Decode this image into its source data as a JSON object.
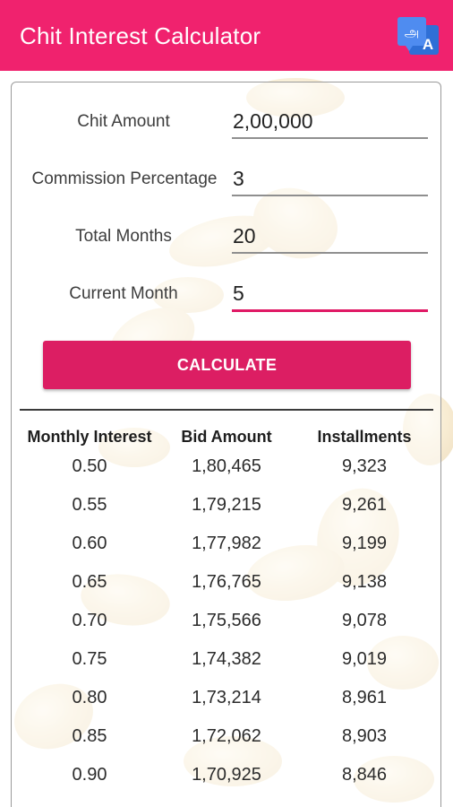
{
  "appbar": {
    "title": "Chit Interest Calculator",
    "translate_icon": "translate-icon"
  },
  "form": {
    "chit_amount_label": "Chit Amount",
    "chit_amount_value": "2,00,000",
    "commission_label": "Commission Percentage",
    "commission_value": "3",
    "total_months_label": "Total Months",
    "total_months_value": "20",
    "current_month_label": "Current Month",
    "current_month_value": "5"
  },
  "calculate_label": "CALCULATE",
  "table": {
    "headers": [
      "Monthly Interest",
      "Bid Amount",
      "Installments"
    ],
    "rows": [
      [
        "0.50",
        "1,80,465",
        "9,323"
      ],
      [
        "0.55",
        "1,79,215",
        "9,261"
      ],
      [
        "0.60",
        "1,77,982",
        "9,199"
      ],
      [
        "0.65",
        "1,76,765",
        "9,138"
      ],
      [
        "0.70",
        "1,75,566",
        "9,078"
      ],
      [
        "0.75",
        "1,74,382",
        "9,019"
      ],
      [
        "0.80",
        "1,73,214",
        "8,961"
      ],
      [
        "0.85",
        "1,72,062",
        "8,903"
      ],
      [
        "0.90",
        "1,70,925",
        "8,846"
      ]
    ]
  },
  "colors": {
    "appbar": "#f0226e",
    "button": "#dc1e63",
    "active_underline": "#e01a65"
  }
}
